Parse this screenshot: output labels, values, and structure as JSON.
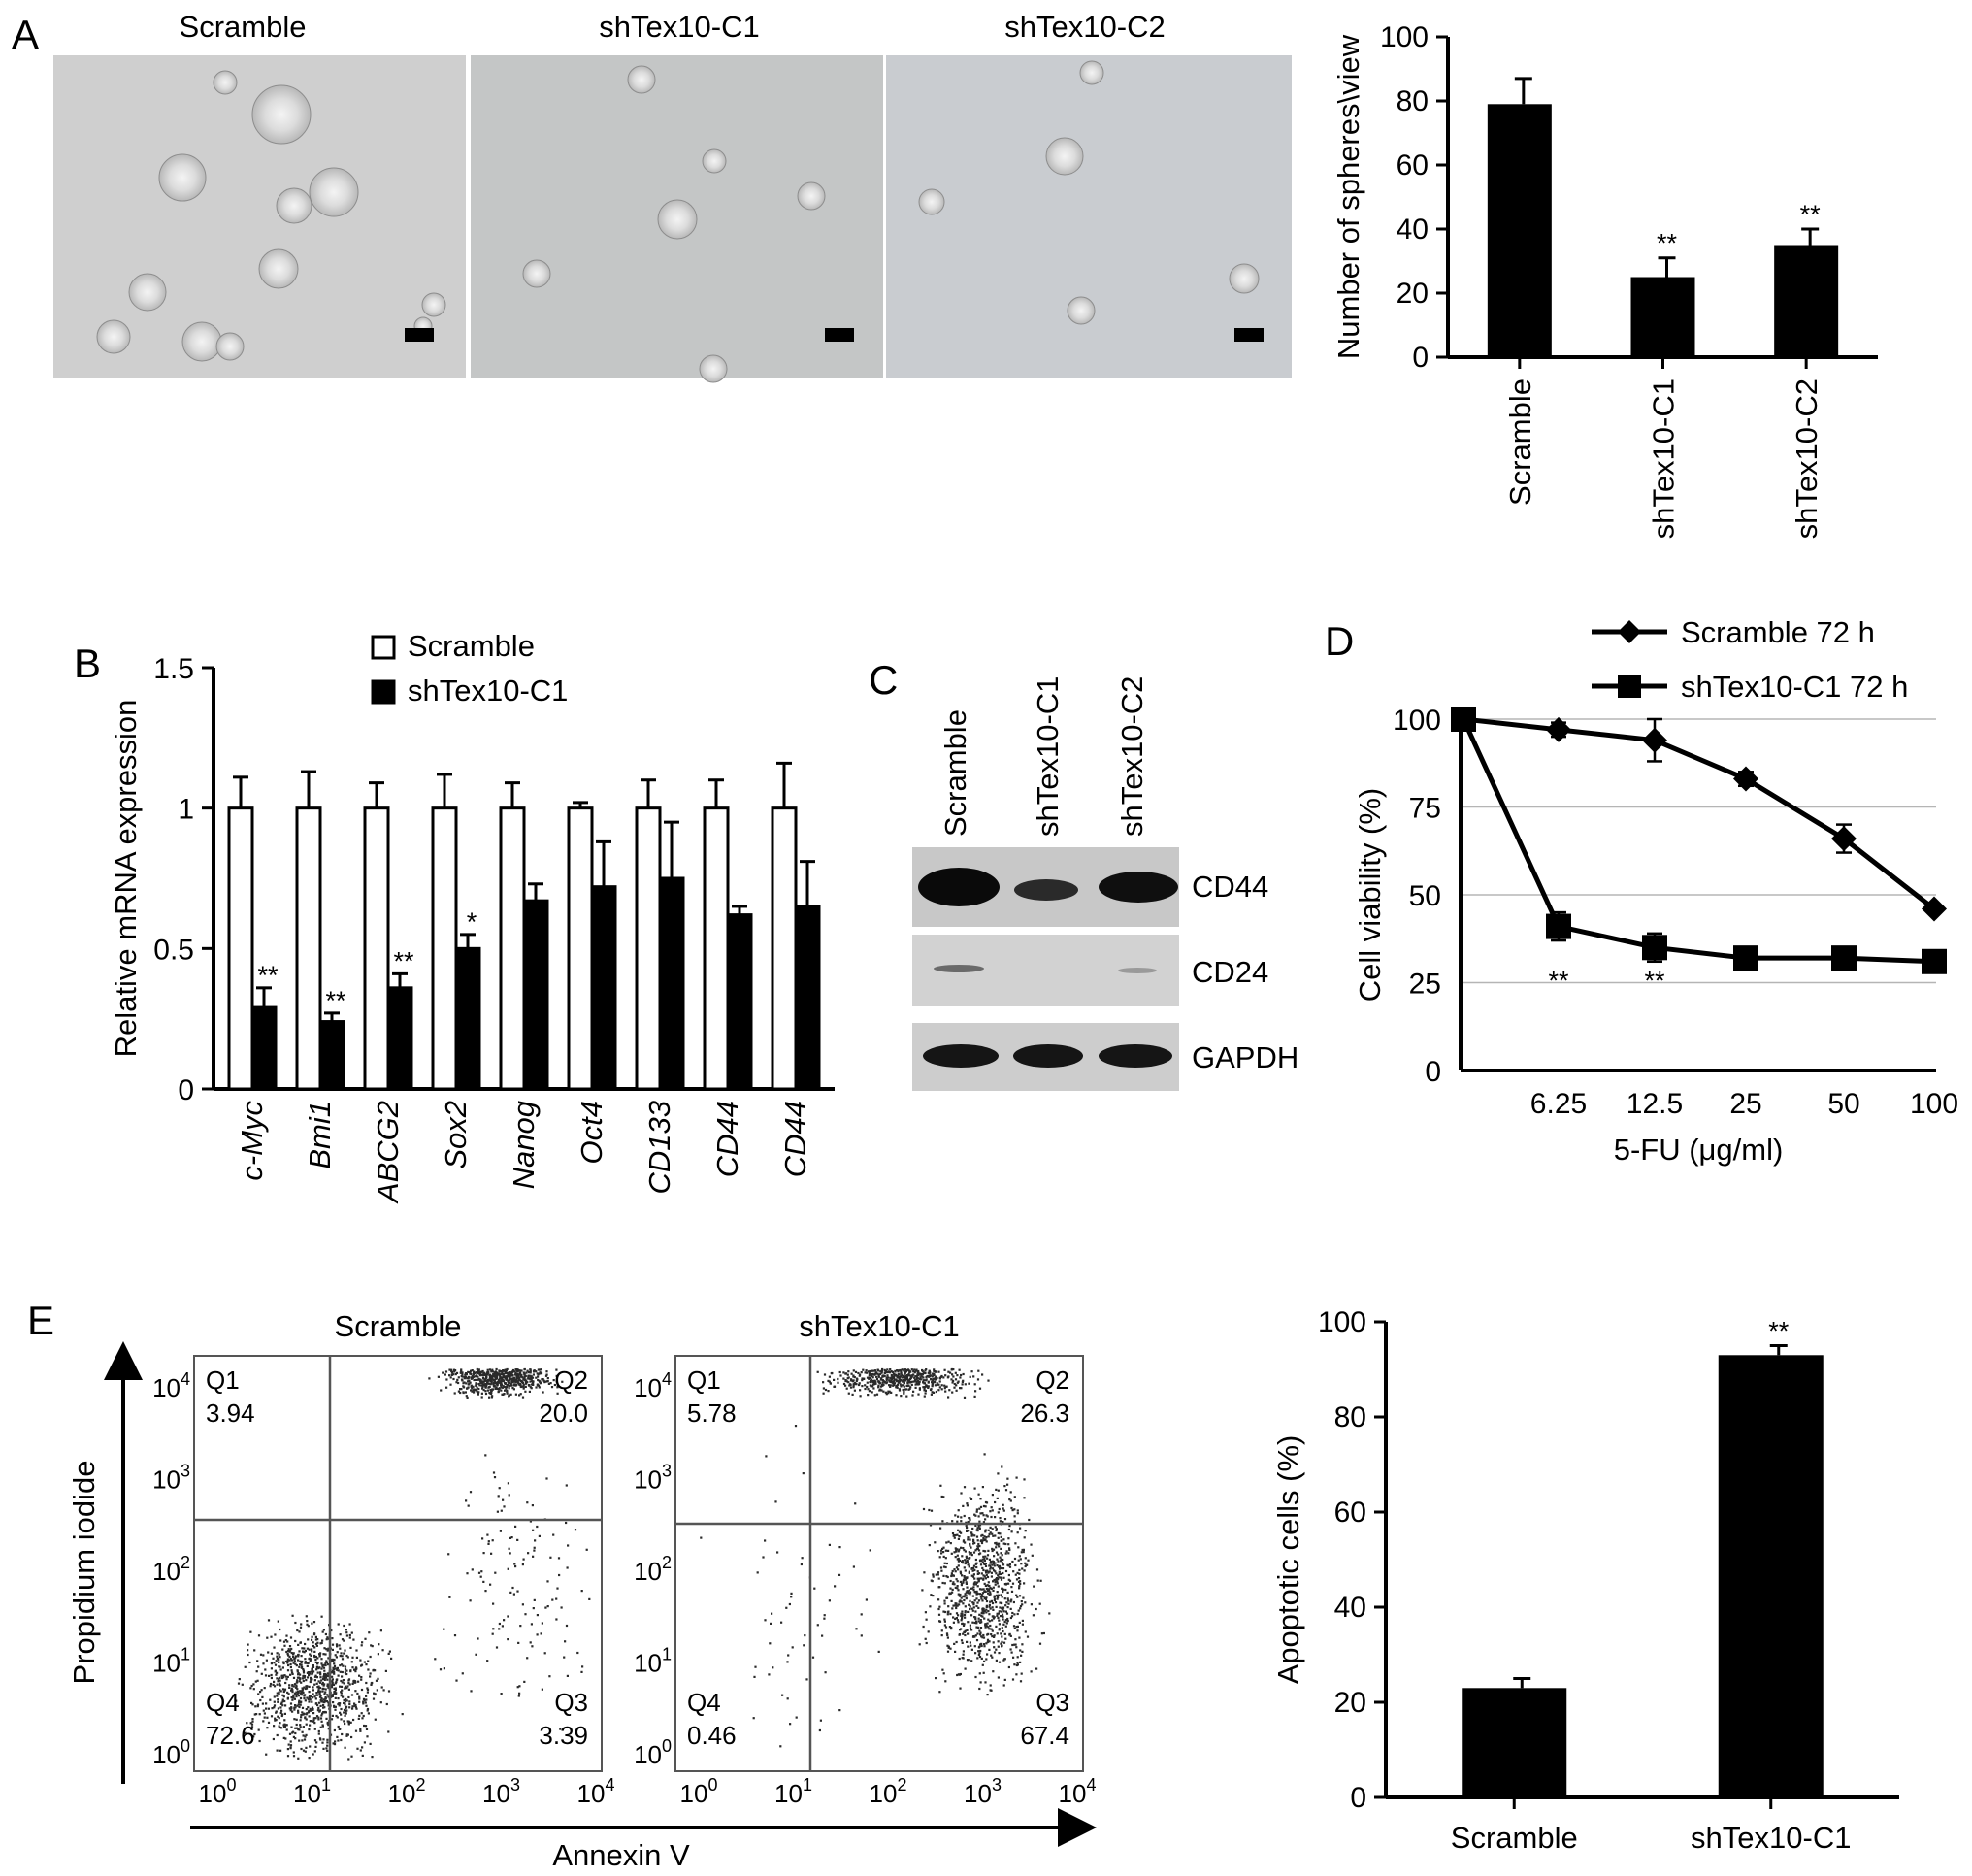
{
  "panels": {
    "A": {
      "label": "A",
      "images": [
        {
          "title": "Scramble"
        },
        {
          "title": "shTex10-C1"
        },
        {
          "title": "shTex10-C2"
        }
      ]
    },
    "B": {
      "label": "B"
    },
    "C": {
      "label": "C",
      "lanes": [
        "Scramble",
        "shTex10-C1",
        "shTex10-C2"
      ],
      "bands": [
        "CD44",
        "CD24",
        "GAPDH"
      ]
    },
    "D": {
      "label": "D"
    },
    "E": {
      "label": "E",
      "flow": [
        {
          "title": "Scramble",
          "quadrants": [
            {
              "name": "Q1",
              "value": "3.94"
            },
            {
              "name": "Q2",
              "value": "20.0"
            },
            {
              "name": "Q3",
              "value": "3.39"
            },
            {
              "name": "Q4",
              "value": "72.6"
            }
          ]
        },
        {
          "title": "shTex10-C1",
          "quadrants": [
            {
              "name": "Q1",
              "value": "5.78"
            },
            {
              "name": "Q2",
              "value": "26.3"
            },
            {
              "name": "Q3",
              "value": "67.4"
            },
            {
              "name": "Q4",
              "value": "0.46"
            }
          ]
        }
      ],
      "flow_xlabel": "Annexin V",
      "flow_ylabel": "Propidium iodide",
      "flow_ticks": [
        {
          "base": "10",
          "exp": "0"
        },
        {
          "base": "10",
          "exp": "1"
        },
        {
          "base": "10",
          "exp": "2"
        },
        {
          "base": "10",
          "exp": "3"
        },
        {
          "base": "10",
          "exp": "4"
        }
      ]
    }
  },
  "chart_data": [
    {
      "id": "A",
      "type": "bar",
      "categories": [
        "Scramble",
        "shTex10-C1",
        "shTex10-C2"
      ],
      "values": [
        79,
        25,
        35
      ],
      "errors": [
        8,
        6,
        5
      ],
      "annotations": [
        "",
        "**",
        "**"
      ],
      "ylabel": "Number of spheres\\view",
      "ylim": [
        0,
        100
      ],
      "yticks": [
        0,
        20,
        40,
        60,
        80,
        100
      ],
      "grid": false
    },
    {
      "id": "B",
      "type": "bar",
      "categories": [
        "c-Myc",
        "Bmi1",
        "ABCG2",
        "Sox2",
        "Nanog",
        "Oct4",
        "CD133",
        "CD44",
        "CD44"
      ],
      "series": [
        {
          "name": "Scramble",
          "values": [
            1,
            1,
            1,
            1,
            1,
            1,
            1,
            1,
            1
          ],
          "errors": [
            0.11,
            0.13,
            0.09,
            0.12,
            0.09,
            0.02,
            0.1,
            0.1,
            0.16
          ],
          "color": "#ffffff"
        },
        {
          "name": "shTex10-C1",
          "values": [
            0.29,
            0.24,
            0.36,
            0.5,
            0.67,
            0.72,
            0.75,
            0.62,
            0.65
          ],
          "errors": [
            0.07,
            0.03,
            0.05,
            0.05,
            0.06,
            0.16,
            0.2,
            0.03,
            0.16
          ],
          "color": "#000000"
        }
      ],
      "annotations": [
        "**",
        "**",
        "**",
        "*",
        "",
        "",
        "",
        "",
        ""
      ],
      "ylabel": "Relative mRNA expression",
      "ylim": [
        0,
        1.5
      ],
      "yticks": [
        "0",
        "0.5",
        "1",
        "1.5"
      ],
      "legend": "top",
      "grid": false
    },
    {
      "id": "D",
      "type": "line",
      "x": [
        "0",
        "6.25",
        "12.5",
        "25",
        "50",
        "100"
      ],
      "xticks": [
        "6.25",
        "12.5",
        "25",
        "50",
        "100"
      ],
      "series": [
        {
          "name": "Scramble 72 h",
          "marker": "diamond",
          "values": [
            100,
            97,
            94,
            83,
            66,
            46
          ],
          "errors": [
            0,
            2,
            6,
            2,
            4,
            1
          ]
        },
        {
          "name": "shTex10-C1 72 h",
          "marker": "square",
          "values": [
            100,
            41,
            35,
            32,
            32,
            31
          ],
          "errors": [
            0,
            4,
            4,
            1,
            1,
            1
          ]
        }
      ],
      "annotations": [
        {
          "x": "6.25",
          "text": "**"
        },
        {
          "x": "12.5",
          "text": "**"
        }
      ],
      "xlabel": "5-FU (μg/ml)",
      "ylabel": "Cell viability (%)",
      "ylim": [
        0,
        100
      ],
      "yticks": [
        0,
        25,
        50,
        75,
        100
      ],
      "grid": true,
      "legend": "top"
    },
    {
      "id": "E-bar",
      "type": "bar",
      "categories": [
        "Scramble",
        "shTex10-C1"
      ],
      "values": [
        23,
        93
      ],
      "errors": [
        2,
        2
      ],
      "annotations": [
        "",
        "**"
      ],
      "ylabel": "Apoptotic cells (%)",
      "ylim": [
        0,
        100
      ],
      "yticks": [
        0,
        20,
        40,
        60,
        80,
        100
      ],
      "grid": false
    }
  ]
}
